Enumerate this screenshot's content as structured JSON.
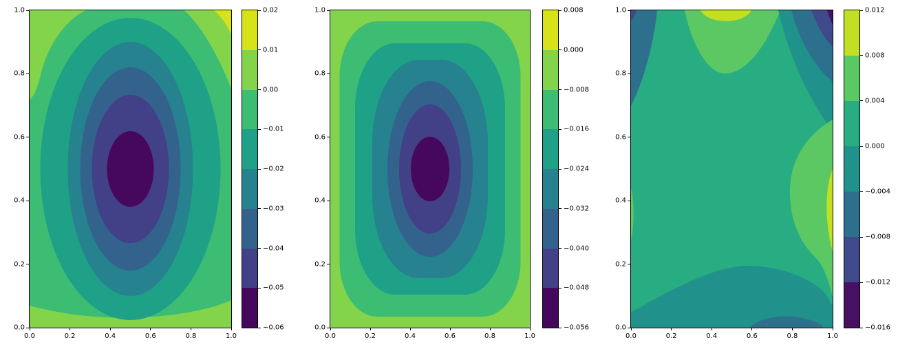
{
  "figure": {
    "background": "#ffffff",
    "axis_color": "#000000",
    "tick_label_color": "#000000",
    "colormap": "viridis"
  },
  "chart_data": [
    {
      "type": "contourf",
      "panel_index": 0,
      "title": "",
      "xlabel": "",
      "ylabel": "",
      "xlim": [
        0.0,
        1.0
      ],
      "ylim": [
        0.0,
        1.0
      ],
      "x_tick_labels": [
        "0.0",
        "0.2",
        "0.4",
        "0.6",
        "0.8",
        "1.0"
      ],
      "y_tick_labels": [
        "0.0",
        "0.2",
        "0.4",
        "0.6",
        "0.8",
        "1.0"
      ],
      "levels": [
        -0.06,
        -0.05,
        -0.04,
        -0.03,
        -0.02,
        -0.01,
        0.0,
        0.01,
        0.02
      ],
      "colorbar_tick_labels": [
        "0.02",
        "0.01",
        "0.00",
        "−0.01",
        "−0.02",
        "−0.03",
        "−0.04",
        "−0.05",
        "−0.06"
      ],
      "band_colors": [
        "#46085c",
        "#424086",
        "#33638d",
        "#26828e",
        "#1fa187",
        "#3dbc74",
        "#84d44b",
        "#d8e219"
      ],
      "features": {
        "minimum": {
          "x": 0.5,
          "y": 0.5,
          "value": -0.06
        },
        "maximum": {
          "x": 1.0,
          "y": 1.0,
          "value": 0.02
        },
        "description": "Nested elliptical contours descending to a dark minimum near the domain centre (0.5, 0.5); slightly positive band along the left/top-left edge and bottom strip; small positive maximum patch in the top-right corner."
      }
    },
    {
      "type": "contourf",
      "panel_index": 1,
      "title": "",
      "xlabel": "",
      "ylabel": "",
      "xlim": [
        0.0,
        1.0
      ],
      "ylim": [
        0.0,
        1.0
      ],
      "x_tick_labels": [
        "0.0",
        "0.2",
        "0.4",
        "0.6",
        "0.8",
        "1.0"
      ],
      "y_tick_labels": [
        "0.0",
        "0.2",
        "0.4",
        "0.6",
        "0.8",
        "1.0"
      ],
      "levels": [
        -0.056,
        -0.048,
        -0.04,
        -0.032,
        -0.024,
        -0.016,
        -0.008,
        0.0,
        0.008
      ],
      "colorbar_tick_labels": [
        "0.008",
        "0.000",
        "−0.008",
        "−0.016",
        "−0.024",
        "−0.032",
        "−0.040",
        "−0.048",
        "−0.056"
      ],
      "band_colors": [
        "#46085c",
        "#424086",
        "#33638d",
        "#26828e",
        "#1fa187",
        "#3dbc74",
        "#84d44b",
        "#d8e219"
      ],
      "features": {
        "minimum": {
          "x": 0.5,
          "y": 0.5,
          "value": -0.056
        },
        "description": "Symmetric nested rounded-rectangle/elliptical contours descending to a dark minimum at the centre (0.5, 0.5); outer region sits in the slightly negative band near zero on all edges."
      }
    },
    {
      "type": "contourf",
      "panel_index": 2,
      "title": "",
      "xlabel": "",
      "ylabel": "",
      "xlim": [
        0.0,
        1.0
      ],
      "ylim": [
        0.0,
        1.0
      ],
      "x_tick_labels": [
        "0.0",
        "0.2",
        "0.4",
        "0.6",
        "0.8",
        "1.0"
      ],
      "y_tick_labels": [
        "0.0",
        "0.2",
        "0.4",
        "0.6",
        "0.8",
        "1.0"
      ],
      "levels": [
        -0.016,
        -0.012,
        -0.008,
        -0.004,
        0.0,
        0.004,
        0.008,
        0.012
      ],
      "colorbar_tick_labels": [
        "0.012",
        "0.008",
        "0.004",
        "0.000",
        "−0.004",
        "−0.008",
        "−0.012",
        "−0.016"
      ],
      "band_colors": [
        "#471063",
        "#3e4a89",
        "#2d708e",
        "#21918c",
        "#27ad81",
        "#5cc863",
        "#c2df23"
      ],
      "features": {
        "maxima": [
          {
            "x": 0.47,
            "y": 1.0,
            "value": 0.012
          },
          {
            "x": 1.0,
            "y": 0.38,
            "value": 0.012
          }
        ],
        "minima": [
          {
            "x": 1.0,
            "y": 1.0,
            "value": -0.016
          },
          {
            "x": 0.0,
            "y": 1.0,
            "value": -0.01
          }
        ],
        "description": "Mostly flat field near zero; positive maxima at the top-centre edge and mid-right edge (yellow), negative lobes in the top-left and top-right corners (darkest at top-right) and a shallow negative trough along the bottom edge."
      }
    }
  ]
}
